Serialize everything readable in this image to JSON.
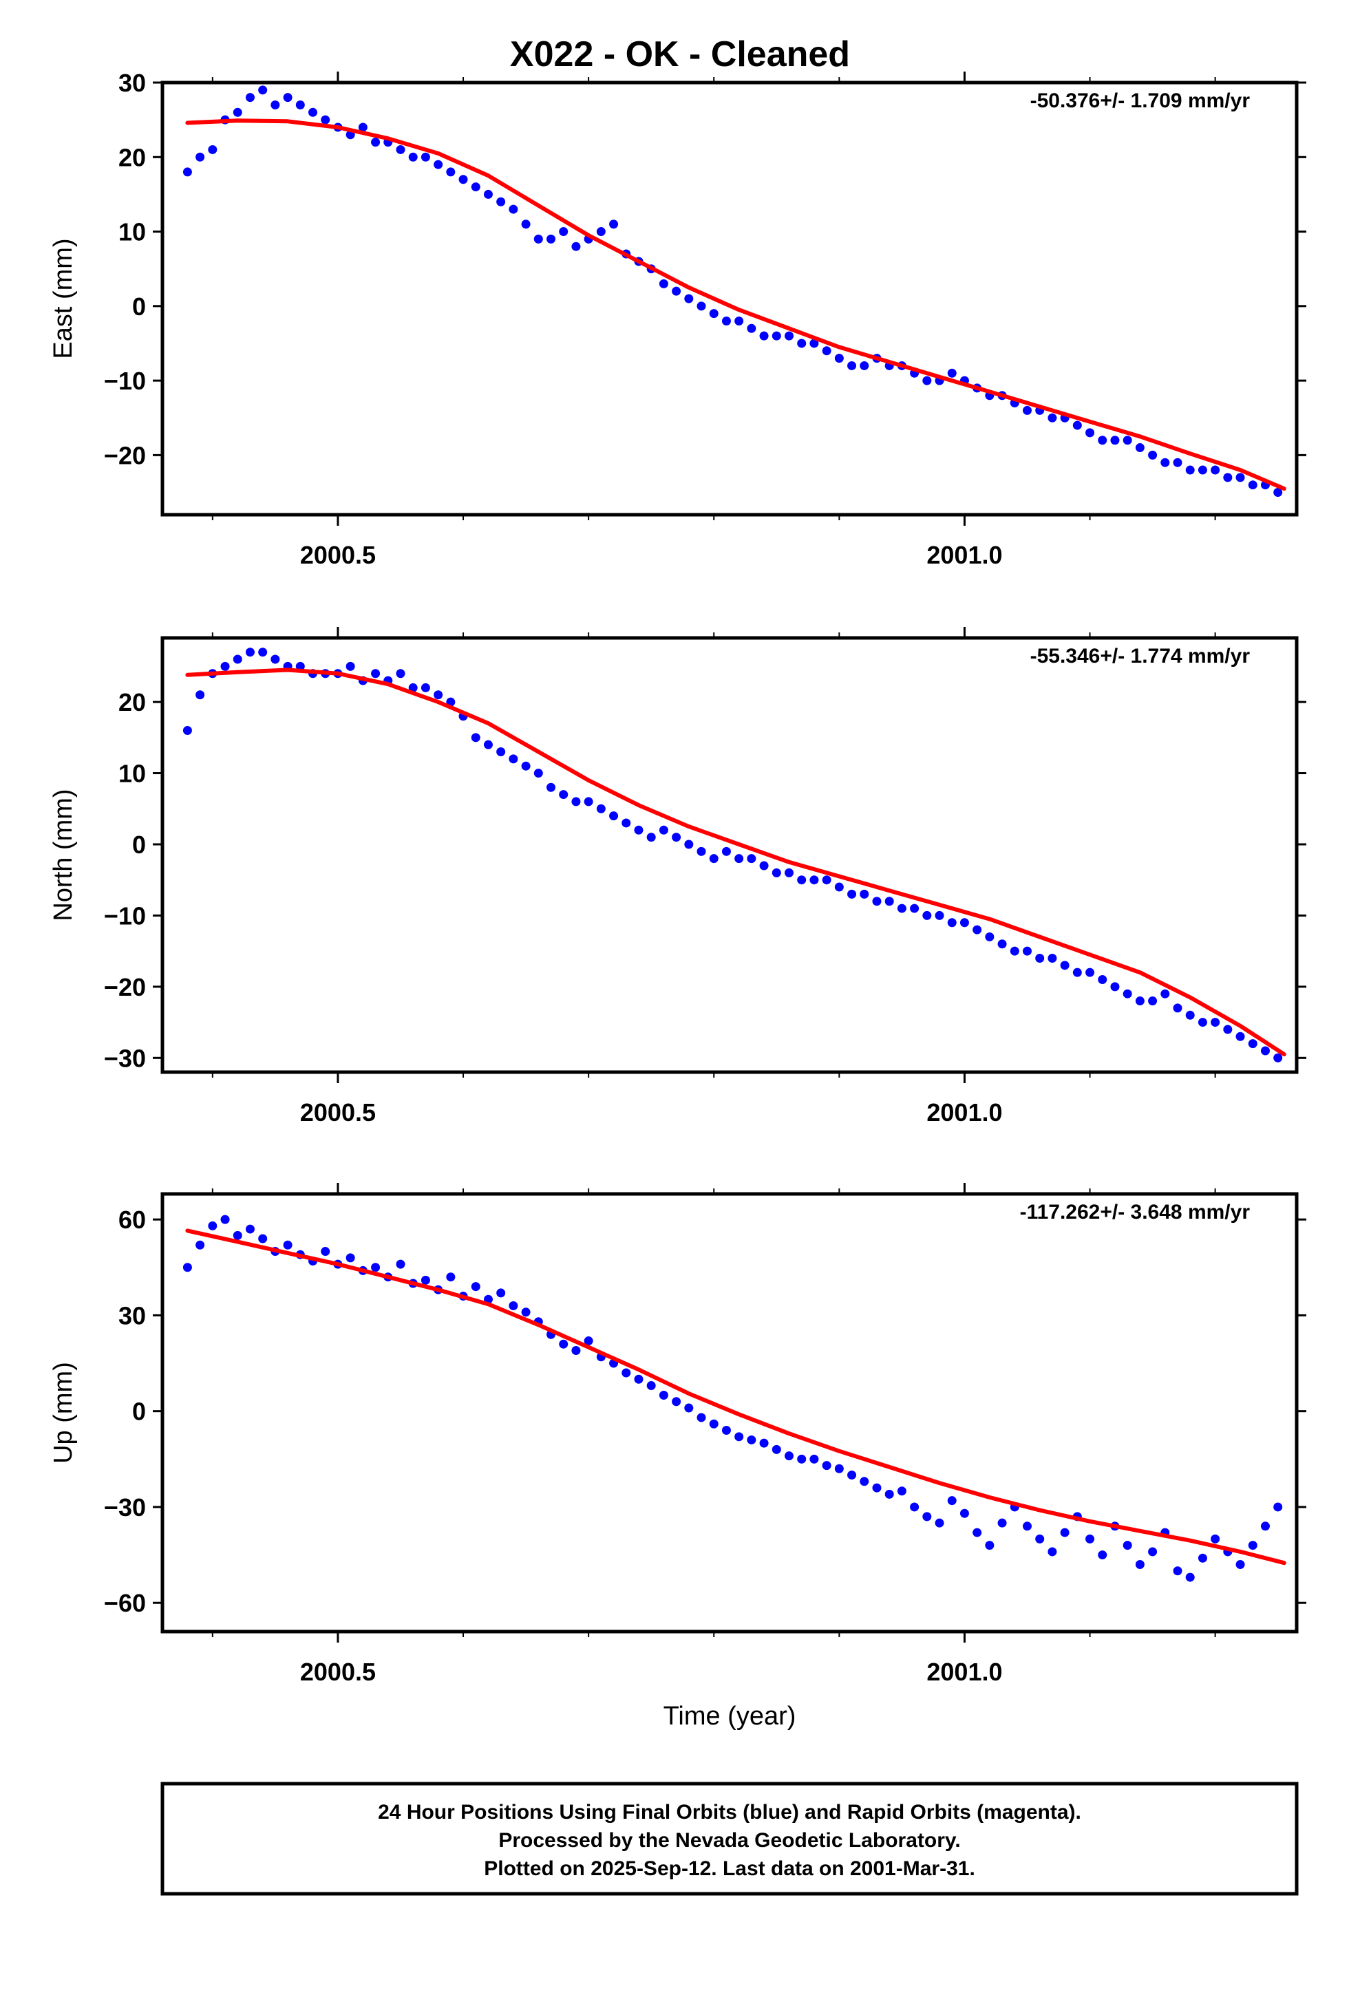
{
  "title": "X022  - OK - Cleaned",
  "footer": {
    "lines": [
      "24 Hour Positions Using Final Orbits (blue) and Rapid Orbits (magenta).",
      "Processed by the Nevada Geodetic Laboratory.",
      "Plotted on 2025-Sep-12. Last data on 2001-Mar-31."
    ]
  },
  "colors": {
    "points": "#0000ff",
    "fit": "#ff0000",
    "axes": "#000000"
  },
  "chart_data": [
    {
      "type": "scatter",
      "title": "",
      "xlabel": "",
      "ylabel": "East (mm)",
      "rate_label": "-50.376+/- 1.709 mm/yr",
      "xlim": [
        2000.36,
        2001.265
      ],
      "ylim": [
        -28,
        30
      ],
      "xticks": [
        2000.5,
        2001.0
      ],
      "xtick_labels": [
        "2000.5",
        "2001.0"
      ],
      "yticks": [
        30,
        20,
        10,
        0,
        -10,
        -20
      ],
      "ytick_labels": [
        "30",
        "20",
        "10",
        "0",
        "−10",
        "−20"
      ],
      "series": [
        {
          "kind": "points",
          "x": [
            2000.38,
            2000.39,
            2000.4,
            2000.41,
            2000.42,
            2000.43,
            2000.44,
            2000.45,
            2000.46,
            2000.47,
            2000.48,
            2000.49,
            2000.5,
            2000.51,
            2000.52,
            2000.53,
            2000.54,
            2000.55,
            2000.56,
            2000.57,
            2000.58,
            2000.59,
            2000.6,
            2000.61,
            2000.62,
            2000.63,
            2000.64,
            2000.65,
            2000.66,
            2000.67,
            2000.68,
            2000.69,
            2000.7,
            2000.71,
            2000.72,
            2000.73,
            2000.74,
            2000.75,
            2000.76,
            2000.77,
            2000.78,
            2000.79,
            2000.8,
            2000.81,
            2000.82,
            2000.83,
            2000.84,
            2000.85,
            2000.86,
            2000.87,
            2000.88,
            2000.89,
            2000.9,
            2000.91,
            2000.92,
            2000.93,
            2000.94,
            2000.95,
            2000.96,
            2000.97,
            2000.98,
            2000.99,
            2001.0,
            2001.01,
            2001.02,
            2001.03,
            2001.04,
            2001.05,
            2001.06,
            2001.07,
            2001.08,
            2001.09,
            2001.1,
            2001.11,
            2001.12,
            2001.13,
            2001.14,
            2001.15,
            2001.16,
            2001.17,
            2001.18,
            2001.19,
            2001.2,
            2001.21,
            2001.22,
            2001.23,
            2001.24,
            2001.25
          ],
          "y": [
            18,
            20,
            21,
            25,
            26,
            28,
            29,
            27,
            28,
            27,
            26,
            25,
            24,
            23,
            24,
            22,
            22,
            21,
            20,
            20,
            19,
            18,
            17,
            16,
            15,
            14,
            13,
            11,
            9,
            9,
            10,
            8,
            9,
            10,
            11,
            7,
            6,
            5,
            3,
            2,
            1,
            0,
            -1,
            -2,
            -2,
            -3,
            -4,
            -4,
            -4,
            -5,
            -5,
            -6,
            -7,
            -8,
            -8,
            -7,
            -8,
            -8,
            -9,
            -10,
            -10,
            -9,
            -10,
            -11,
            -12,
            -12,
            -13,
            -14,
            -14,
            -15,
            -15,
            -16,
            -17,
            -18,
            -18,
            -18,
            -19,
            -20,
            -21,
            -21,
            -22,
            -22,
            -22,
            -23,
            -23,
            -24,
            -24,
            -25
          ]
        },
        {
          "kind": "fit",
          "x": [
            2000.38,
            2000.42,
            2000.46,
            2000.5,
            2000.54,
            2000.58,
            2000.62,
            2000.66,
            2000.7,
            2000.74,
            2000.78,
            2000.82,
            2000.86,
            2000.9,
            2000.94,
            2000.98,
            2001.02,
            2001.06,
            2001.1,
            2001.14,
            2001.18,
            2001.22,
            2001.255
          ],
          "y": [
            24.6,
            24.9,
            24.8,
            24.0,
            22.5,
            20.5,
            17.5,
            13.5,
            9.5,
            6.0,
            2.5,
            -0.5,
            -3.0,
            -5.5,
            -7.5,
            -9.5,
            -11.5,
            -13.5,
            -15.5,
            -17.5,
            -19.8,
            -22.0,
            -24.5
          ]
        }
      ]
    },
    {
      "type": "scatter",
      "title": "",
      "xlabel": "",
      "ylabel": "North (mm)",
      "rate_label": "-55.346+/- 1.774 mm/yr",
      "xlim": [
        2000.36,
        2001.265
      ],
      "ylim": [
        -32,
        29
      ],
      "xticks": [
        2000.5,
        2001.0
      ],
      "xtick_labels": [
        "2000.5",
        "2001.0"
      ],
      "yticks": [
        20,
        10,
        0,
        -10,
        -20,
        -30
      ],
      "ytick_labels": [
        "20",
        "10",
        "0",
        "−10",
        "−20",
        "−30"
      ],
      "series": [
        {
          "kind": "points",
          "x": [
            2000.38,
            2000.39,
            2000.4,
            2000.41,
            2000.42,
            2000.43,
            2000.44,
            2000.45,
            2000.46,
            2000.47,
            2000.48,
            2000.49,
            2000.5,
            2000.51,
            2000.52,
            2000.53,
            2000.54,
            2000.55,
            2000.56,
            2000.57,
            2000.58,
            2000.59,
            2000.6,
            2000.61,
            2000.62,
            2000.63,
            2000.64,
            2000.65,
            2000.66,
            2000.67,
            2000.68,
            2000.69,
            2000.7,
            2000.71,
            2000.72,
            2000.73,
            2000.74,
            2000.75,
            2000.76,
            2000.77,
            2000.78,
            2000.79,
            2000.8,
            2000.81,
            2000.82,
            2000.83,
            2000.84,
            2000.85,
            2000.86,
            2000.87,
            2000.88,
            2000.89,
            2000.9,
            2000.91,
            2000.92,
            2000.93,
            2000.94,
            2000.95,
            2000.96,
            2000.97,
            2000.98,
            2000.99,
            2001.0,
            2001.01,
            2001.02,
            2001.03,
            2001.04,
            2001.05,
            2001.06,
            2001.07,
            2001.08,
            2001.09,
            2001.1,
            2001.11,
            2001.12,
            2001.13,
            2001.14,
            2001.15,
            2001.16,
            2001.17,
            2001.18,
            2001.19,
            2001.2,
            2001.21,
            2001.22,
            2001.23,
            2001.24,
            2001.25
          ],
          "y": [
            16,
            21,
            24,
            25,
            26,
            27,
            27,
            26,
            25,
            25,
            24,
            24,
            24,
            25,
            23,
            24,
            23,
            24,
            22,
            22,
            21,
            20,
            18,
            15,
            14,
            13,
            12,
            11,
            10,
            8,
            7,
            6,
            6,
            5,
            4,
            3,
            2,
            1,
            2,
            1,
            0,
            -1,
            -2,
            -1,
            -2,
            -2,
            -3,
            -4,
            -4,
            -5,
            -5,
            -5,
            -6,
            -7,
            -7,
            -8,
            -8,
            -9,
            -9,
            -10,
            -10,
            -11,
            -11,
            -12,
            -13,
            -14,
            -15,
            -15,
            -16,
            -16,
            -17,
            -18,
            -18,
            -19,
            -20,
            -21,
            -22,
            -22,
            -21,
            -23,
            -24,
            -25,
            -25,
            -26,
            -27,
            -28,
            -29,
            -30
          ]
        },
        {
          "kind": "fit",
          "x": [
            2000.38,
            2000.42,
            2000.46,
            2000.5,
            2000.54,
            2000.58,
            2000.62,
            2000.66,
            2000.7,
            2000.74,
            2000.78,
            2000.82,
            2000.86,
            2000.9,
            2000.94,
            2000.98,
            2001.02,
            2001.06,
            2001.1,
            2001.14,
            2001.18,
            2001.22,
            2001.255
          ],
          "y": [
            23.8,
            24.2,
            24.5,
            24.0,
            22.5,
            20.0,
            17.0,
            13.0,
            9.0,
            5.5,
            2.5,
            0.0,
            -2.5,
            -4.5,
            -6.5,
            -8.5,
            -10.5,
            -13.0,
            -15.5,
            -18.0,
            -21.5,
            -25.5,
            -29.5
          ]
        }
      ]
    },
    {
      "type": "scatter",
      "title": "",
      "xlabel": "Time (year)",
      "ylabel": "Up (mm)",
      "rate_label": "-117.262+/- 3.648 mm/yr",
      "xlim": [
        2000.36,
        2001.265
      ],
      "ylim": [
        -69,
        68
      ],
      "xticks": [
        2000.5,
        2001.0
      ],
      "xtick_labels": [
        "2000.5",
        "2001.0"
      ],
      "yticks": [
        60,
        30,
        0,
        -30,
        -60
      ],
      "ytick_labels": [
        "60",
        "30",
        "0",
        "−30",
        "−60"
      ],
      "series": [
        {
          "kind": "points",
          "x": [
            2000.38,
            2000.39,
            2000.4,
            2000.41,
            2000.42,
            2000.43,
            2000.44,
            2000.45,
            2000.46,
            2000.47,
            2000.48,
            2000.49,
            2000.5,
            2000.51,
            2000.52,
            2000.53,
            2000.54,
            2000.55,
            2000.56,
            2000.57,
            2000.58,
            2000.59,
            2000.6,
            2000.61,
            2000.62,
            2000.63,
            2000.64,
            2000.65,
            2000.66,
            2000.67,
            2000.68,
            2000.69,
            2000.7,
            2000.71,
            2000.72,
            2000.73,
            2000.74,
            2000.75,
            2000.76,
            2000.77,
            2000.78,
            2000.79,
            2000.8,
            2000.81,
            2000.82,
            2000.83,
            2000.84,
            2000.85,
            2000.86,
            2000.87,
            2000.88,
            2000.89,
            2000.9,
            2000.91,
            2000.92,
            2000.93,
            2000.94,
            2000.95,
            2000.96,
            2000.97,
            2000.98,
            2000.99,
            2001.0,
            2001.01,
            2001.02,
            2001.03,
            2001.04,
            2001.05,
            2001.06,
            2001.07,
            2001.08,
            2001.09,
            2001.1,
            2001.11,
            2001.12,
            2001.13,
            2001.14,
            2001.15,
            2001.16,
            2001.17,
            2001.18,
            2001.19,
            2001.2,
            2001.21,
            2001.22,
            2001.23,
            2001.24,
            2001.25
          ],
          "y": [
            45,
            52,
            58,
            60,
            55,
            57,
            54,
            50,
            52,
            49,
            47,
            50,
            46,
            48,
            44,
            45,
            42,
            46,
            40,
            41,
            38,
            42,
            36,
            39,
            35,
            37,
            33,
            31,
            28,
            24,
            21,
            19,
            22,
            17,
            15,
            12,
            10,
            8,
            5,
            3,
            1,
            -2,
            -4,
            -6,
            -8,
            -9,
            -10,
            -12,
            -14,
            -15,
            -15,
            -17,
            -18,
            -20,
            -22,
            -24,
            -26,
            -25,
            -30,
            -33,
            -35,
            -28,
            -32,
            -38,
            -42,
            -35,
            -30,
            -36,
            -40,
            -44,
            -38,
            -33,
            -40,
            -45,
            -36,
            -42,
            -48,
            -44,
            -38,
            -50,
            -52,
            -46,
            -40,
            -44,
            -48,
            -42,
            -36,
            -30
          ]
        },
        {
          "kind": "fit",
          "x": [
            2000.38,
            2000.42,
            2000.46,
            2000.5,
            2000.54,
            2000.58,
            2000.62,
            2000.66,
            2000.7,
            2000.74,
            2000.78,
            2000.82,
            2000.86,
            2000.9,
            2000.94,
            2000.98,
            2001.02,
            2001.06,
            2001.1,
            2001.14,
            2001.18,
            2001.22,
            2001.255
          ],
          "y": [
            56.5,
            53.0,
            49.5,
            46.0,
            42.0,
            38.0,
            33.5,
            27.0,
            20.0,
            13.0,
            5.5,
            -1.0,
            -7.0,
            -12.5,
            -17.5,
            -22.5,
            -27.0,
            -31.0,
            -34.5,
            -37.5,
            -40.5,
            -44.0,
            -47.5
          ]
        }
      ]
    }
  ]
}
